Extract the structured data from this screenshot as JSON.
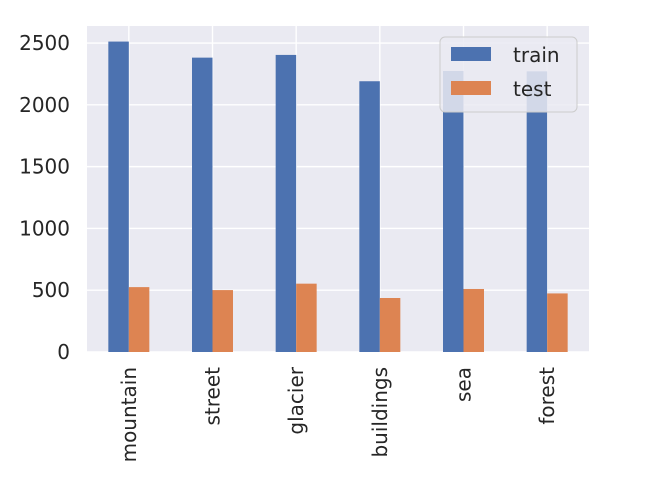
{
  "chart_data": {
    "type": "bar",
    "categories": [
      "mountain",
      "street",
      "glacier",
      "buildings",
      "sea",
      "forest"
    ],
    "series": [
      {
        "name": "train",
        "values": [
          2512,
          2382,
          2404,
          2191,
          2274,
          2271
        ],
        "color": "#4c72b0"
      },
      {
        "name": "test",
        "values": [
          525,
          501,
          553,
          437,
          510,
          474
        ],
        "color": "#dd8452"
      }
    ],
    "yticks": [
      0,
      500,
      1000,
      1500,
      2000,
      2500
    ],
    "ylim": [
      0,
      2638
    ],
    "title": "",
    "xlabel": "",
    "ylabel": "",
    "grid": true,
    "legend_position": "top-right",
    "plot_background": "#eaeaf2",
    "grid_color": "#ffffff"
  }
}
